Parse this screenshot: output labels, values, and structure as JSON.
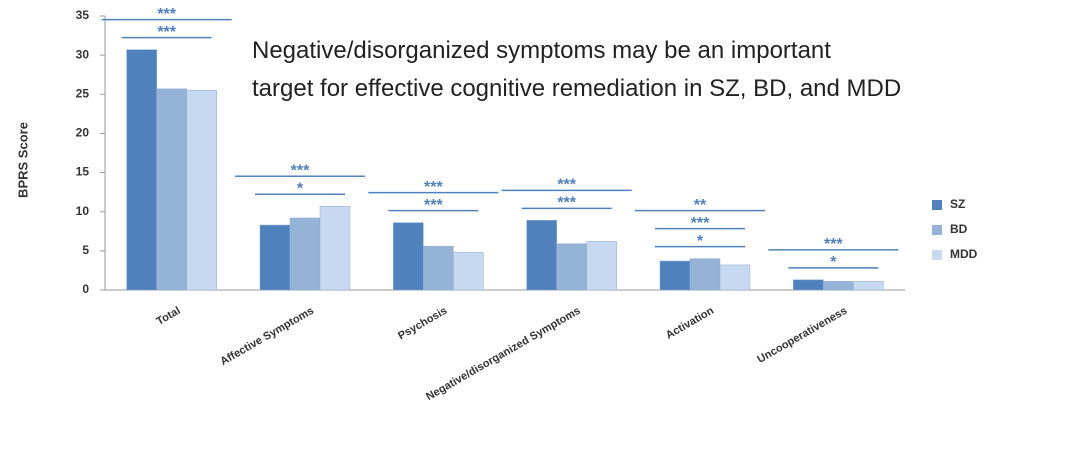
{
  "chart_data": {
    "type": "bar",
    "ylabel": "BPRS Score",
    "note": [
      "Negative/disorganized symptoms may be an important",
      "target for effective cognitive remediation in SZ, BD, and MDD"
    ],
    "categories": [
      "Total",
      "Affective Symptoms",
      "Psychosis",
      "Negative/disorganized Symptoms",
      "Activation",
      "Uncooperativeness"
    ],
    "series": [
      {
        "name": "SZ",
        "color": "#4f81bd",
        "values": [
          30.7,
          8.3,
          8.6,
          8.9,
          3.7,
          1.3
        ]
      },
      {
        "name": "BD",
        "color": "#95b3d7",
        "values": [
          25.7,
          9.2,
          5.6,
          5.9,
          4.0,
          1.1
        ]
      },
      {
        "name": "MDD",
        "color": "#c6d9f1",
        "values": [
          25.5,
          10.7,
          4.8,
          6.2,
          3.2,
          1.1
        ]
      }
    ],
    "significance": [
      [
        "***",
        "***"
      ],
      [
        "***",
        "*"
      ],
      [
        "***",
        "***"
      ],
      [
        "***",
        "***"
      ],
      [
        "**",
        "***",
        "*"
      ],
      [
        "***",
        "*"
      ]
    ],
    "ylim": [
      0,
      35
    ],
    "yticks": [
      0,
      5,
      10,
      15,
      20,
      25,
      30,
      35
    ],
    "legend": "right"
  }
}
